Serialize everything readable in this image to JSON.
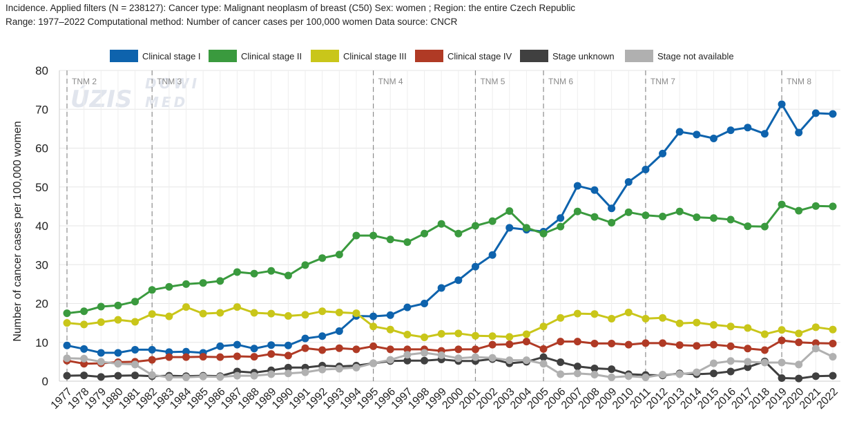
{
  "header": {
    "line1": "Incidence. Applied filters (N = 238127): Cancer type: Malignant neoplasm of breast (C50) Sex: women ; Region: the entire Czech Republic",
    "line2": "Range: 1977–2022 Computational method: Number of cancer cases per 100,000 women Data source: CNCR"
  },
  "watermark": {
    "logo_text": "ÚZIS",
    "sub_text_1": "DOWI",
    "sub_text_2": "MED"
  },
  "chart_data": {
    "type": "line",
    "title": "",
    "xlabel": "",
    "ylabel": "Number of cancer cases per 100,000 women",
    "ylim": [
      0,
      80
    ],
    "yticks": [
      0,
      10,
      20,
      30,
      40,
      50,
      60,
      70,
      80
    ],
    "grid": true,
    "legend_position": "top",
    "x": [
      1977,
      1978,
      1979,
      1980,
      1981,
      1982,
      1983,
      1984,
      1985,
      1986,
      1987,
      1988,
      1989,
      1990,
      1991,
      1992,
      1993,
      1994,
      1995,
      1996,
      1997,
      1998,
      1999,
      2000,
      2001,
      2002,
      2003,
      2004,
      2005,
      2006,
      2007,
      2008,
      2009,
      2010,
      2011,
      2012,
      2013,
      2014,
      2015,
      2016,
      2017,
      2018,
      2019,
      2020,
      2021,
      2022
    ],
    "x_tick_labels": [
      "1977",
      "1978",
      "1979",
      "1980",
      "1981",
      "1982",
      "1983",
      "1984",
      "1985",
      "1986",
      "1987",
      "1988",
      "1989",
      "1990",
      "1991",
      "1992",
      "1993",
      "1994",
      "1995",
      "1996",
      "1997",
      "1998",
      "1999",
      "2000",
      "2001",
      "2002",
      "2003",
      "2004",
      "2005",
      "2006",
      "2007",
      "2008",
      "2009",
      "2010",
      "2011",
      "2012",
      "2013",
      "2014",
      "2015",
      "2016",
      "2017",
      "2018",
      "2019",
      "2020",
      "2021",
      "2022"
    ],
    "tnm_periods": [
      {
        "label": "TNM 2",
        "year": 1977
      },
      {
        "label": "TNM 3",
        "year": 1982
      },
      {
        "label": "TNM 4",
        "year": 1995
      },
      {
        "label": "TNM 5",
        "year": 2001
      },
      {
        "label": "TNM 6",
        "year": 2005
      },
      {
        "label": "TNM 7",
        "year": 2011
      },
      {
        "label": "TNM 8",
        "year": 2019
      }
    ],
    "series": [
      {
        "name": "Clinical stage I",
        "color": "#0e63ad",
        "values": [
          9.2,
          8.3,
          7.3,
          7.3,
          8.1,
          8.1,
          7.5,
          7.6,
          7.3,
          9.0,
          9.4,
          8.4,
          9.3,
          9.2,
          11.0,
          11.6,
          12.9,
          16.8,
          16.7,
          17.0,
          19.0,
          20.0,
          24.0,
          26.0,
          29.5,
          32.5,
          39.5,
          39.0,
          38.5,
          42.0,
          50.3,
          49.2,
          44.5,
          51.3,
          54.5,
          58.6,
          64.2,
          63.5,
          62.5,
          64.6,
          65.3,
          63.7,
          71.3,
          64.0,
          69.0,
          68.8
        ]
      },
      {
        "name": "Clinical stage II",
        "color": "#3a9a3e",
        "values": [
          17.5,
          18.0,
          19.2,
          19.5,
          20.5,
          23.5,
          24.3,
          25.0,
          25.3,
          25.8,
          28.1,
          27.7,
          28.4,
          27.2,
          29.9,
          31.7,
          32.6,
          37.5,
          37.5,
          36.5,
          35.8,
          38.0,
          40.5,
          38.0,
          40.0,
          41.2,
          43.8,
          39.5,
          38.0,
          39.8,
          43.7,
          42.3,
          40.8,
          43.5,
          42.7,
          42.4,
          43.7,
          42.2,
          42.0,
          41.6,
          39.9,
          39.8,
          45.5,
          43.9,
          45.1,
          45.0
        ]
      },
      {
        "name": "Clinical stage III",
        "color": "#c9c61a",
        "values": [
          15.0,
          14.6,
          15.2,
          15.8,
          15.3,
          17.3,
          16.7,
          19.1,
          17.4,
          17.6,
          19.1,
          17.6,
          17.4,
          16.8,
          17.1,
          18.0,
          17.7,
          17.5,
          14.1,
          13.3,
          12.0,
          11.3,
          12.2,
          12.3,
          11.7,
          11.6,
          11.4,
          12.1,
          14.1,
          16.3,
          17.4,
          17.3,
          16.1,
          17.7,
          16.1,
          16.3,
          14.9,
          15.1,
          14.5,
          14.1,
          13.7,
          12.1,
          13.2,
          12.3,
          13.9,
          13.3
        ]
      },
      {
        "name": "Clinical stage IV",
        "color": "#b03a25",
        "values": [
          5.3,
          4.5,
          4.6,
          4.9,
          5.0,
          5.5,
          6.2,
          6.2,
          6.3,
          6.2,
          6.4,
          6.3,
          7.0,
          6.6,
          8.5,
          8.0,
          8.5,
          8.2,
          9.0,
          8.2,
          8.2,
          8.2,
          7.8,
          8.2,
          8.2,
          9.4,
          9.5,
          10.2,
          8.3,
          10.2,
          10.2,
          9.7,
          9.7,
          9.4,
          9.8,
          9.8,
          9.3,
          9.1,
          9.4,
          9.0,
          8.4,
          8.0,
          10.5,
          10.0,
          9.8,
          9.7
        ]
      },
      {
        "name": "Stage unknown",
        "color": "#404040",
        "values": [
          1.4,
          1.5,
          1.1,
          1.4,
          1.5,
          1.3,
          1.4,
          1.3,
          1.4,
          1.3,
          2.5,
          2.2,
          2.8,
          3.5,
          3.5,
          4.0,
          3.8,
          4.0,
          4.6,
          5.2,
          5.3,
          5.3,
          5.6,
          5.2,
          5.2,
          5.7,
          4.6,
          5.0,
          6.2,
          4.9,
          3.8,
          3.3,
          3.1,
          1.8,
          1.6,
          1.5,
          2.0,
          1.8,
          2.0,
          2.5,
          3.6,
          5.1,
          0.8,
          0.7,
          1.3,
          1.4
        ]
      },
      {
        "name": "Stage not available",
        "color": "#b0b0b0",
        "values": [
          5.9,
          5.8,
          5.0,
          4.5,
          4.3,
          1.6,
          1.0,
          1.0,
          1.2,
          1.1,
          1.4,
          1.4,
          1.8,
          2.0,
          2.3,
          3.0,
          3.2,
          3.5,
          4.6,
          5.5,
          6.8,
          7.3,
          6.7,
          5.9,
          6.2,
          6.0,
          5.4,
          5.4,
          4.5,
          1.8,
          2.0,
          1.7,
          1.0,
          1.3,
          1.0,
          1.7,
          1.8,
          2.3,
          4.6,
          5.2,
          5.0,
          4.8,
          4.8,
          4.3,
          8.4,
          6.3
        ]
      }
    ]
  }
}
